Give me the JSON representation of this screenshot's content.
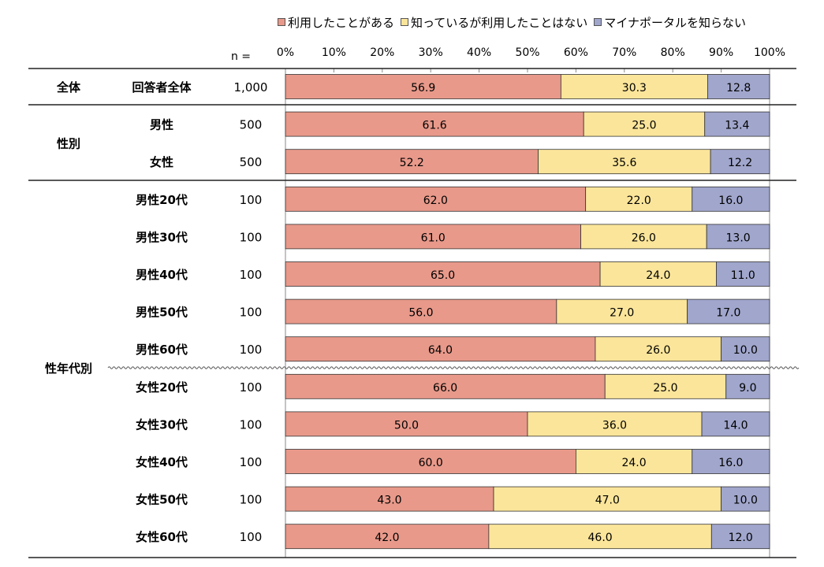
{
  "chart_data": {
    "type": "bar",
    "orientation": "horizontal",
    "stacked": true,
    "n_label": "n =",
    "xlim": [
      0,
      100
    ],
    "ticks": [
      "0%",
      "10%",
      "20%",
      "30%",
      "40%",
      "50%",
      "60%",
      "70%",
      "80%",
      "90%",
      "100%"
    ],
    "legend_position": "top",
    "series": [
      {
        "name": "利用したことがある",
        "color": "#E8998A"
      },
      {
        "name": "知っているが利用したことはない",
        "color": "#FBE59A"
      },
      {
        "name": "マイナポータルを知らない",
        "color": "#A0A6CC"
      }
    ],
    "groups": [
      {
        "label": "全体",
        "rows": [
          0
        ]
      },
      {
        "label": "性別",
        "rows": [
          1,
          2
        ]
      },
      {
        "label": "性年代別",
        "rows": [
          3,
          4,
          5,
          6,
          7,
          8,
          9,
          10,
          11,
          12
        ]
      }
    ],
    "rows": [
      {
        "label": "回答者全体",
        "n": "1,000",
        "values": [
          56.9,
          30.3,
          12.8
        ],
        "value_labels": [
          "56.9",
          "30.3",
          "12.8"
        ]
      },
      {
        "label": "男性",
        "n": "500",
        "values": [
          61.6,
          25.0,
          13.4
        ],
        "value_labels": [
          "61.6",
          "25.0",
          "13.4"
        ]
      },
      {
        "label": "女性",
        "n": "500",
        "values": [
          52.2,
          35.6,
          12.2
        ],
        "value_labels": [
          "52.2",
          "35.6",
          "12.2"
        ]
      },
      {
        "label": "男性20代",
        "n": "100",
        "values": [
          62.0,
          22.0,
          16.0
        ],
        "value_labels": [
          "62.0",
          "22.0",
          "16.0"
        ]
      },
      {
        "label": "男性30代",
        "n": "100",
        "values": [
          61.0,
          26.0,
          13.0
        ],
        "value_labels": [
          "61.0",
          "26.0",
          "13.0"
        ]
      },
      {
        "label": "男性40代",
        "n": "100",
        "values": [
          65.0,
          24.0,
          11.0
        ],
        "value_labels": [
          "65.0",
          "24.0",
          "11.0"
        ]
      },
      {
        "label": "男性50代",
        "n": "100",
        "values": [
          56.0,
          27.0,
          17.0
        ],
        "value_labels": [
          "56.0",
          "27.0",
          "17.0"
        ]
      },
      {
        "label": "男性60代",
        "n": "100",
        "values": [
          64.0,
          26.0,
          10.0
        ],
        "value_labels": [
          "64.0",
          "26.0",
          "10.0"
        ]
      },
      {
        "label": "女性20代",
        "n": "100",
        "values": [
          66.0,
          25.0,
          9.0
        ],
        "value_labels": [
          "66.0",
          "25.0",
          "9.0"
        ]
      },
      {
        "label": "女性30代",
        "n": "100",
        "values": [
          50.0,
          36.0,
          14.0
        ],
        "value_labels": [
          "50.0",
          "36.0",
          "14.0"
        ]
      },
      {
        "label": "女性40代",
        "n": "100",
        "values": [
          60.0,
          24.0,
          16.0
        ],
        "value_labels": [
          "60.0",
          "24.0",
          "16.0"
        ]
      },
      {
        "label": "女性50代",
        "n": "100",
        "values": [
          43.0,
          47.0,
          10.0
        ],
        "value_labels": [
          "43.0",
          "47.0",
          "10.0"
        ]
      },
      {
        "label": "女性60代",
        "n": "100",
        "values": [
          42.0,
          46.0,
          12.0
        ],
        "value_labels": [
          "42.0",
          "46.0",
          "12.0"
        ]
      }
    ]
  }
}
